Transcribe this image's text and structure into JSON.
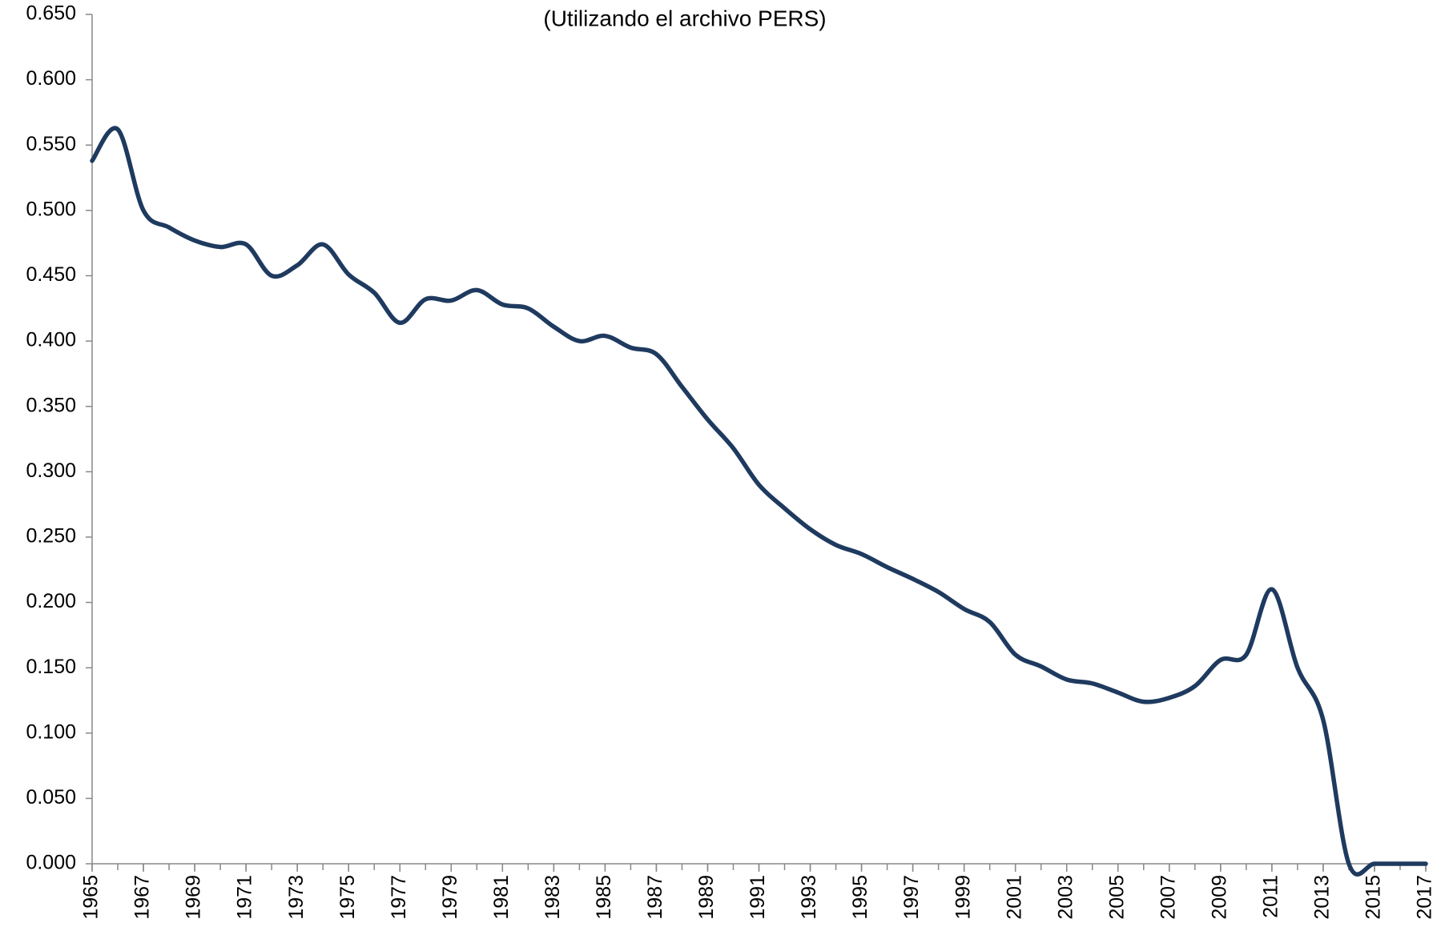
{
  "chart_data": {
    "type": "line",
    "title": "(Utilizando el archivo PERS)",
    "x": [
      1965,
      1966,
      1967,
      1968,
      1969,
      1970,
      1971,
      1972,
      1973,
      1974,
      1975,
      1976,
      1977,
      1978,
      1979,
      1980,
      1981,
      1982,
      1983,
      1984,
      1985,
      1986,
      1987,
      1988,
      1989,
      1990,
      1991,
      1992,
      1993,
      1994,
      1995,
      1996,
      1997,
      1998,
      1999,
      2000,
      2001,
      2002,
      2003,
      2004,
      2005,
      2006,
      2007,
      2008,
      2009,
      2010,
      2011,
      2012,
      2013,
      2014,
      2015,
      2016,
      2017
    ],
    "series": [
      {
        "name": null,
        "color": "#1f3a5f",
        "values": [
          0.538,
          0.562,
          0.5,
          0.487,
          0.477,
          0.472,
          0.474,
          0.45,
          0.458,
          0.474,
          0.451,
          0.437,
          0.414,
          0.432,
          0.431,
          0.439,
          0.428,
          0.425,
          0.411,
          0.4,
          0.404,
          0.395,
          0.39,
          0.365,
          0.34,
          0.318,
          0.29,
          0.272,
          0.256,
          0.244,
          0.237,
          0.227,
          0.218,
          0.208,
          0.195,
          0.185,
          0.16,
          0.151,
          0.141,
          0.138,
          0.131,
          0.124,
          0.127,
          0.136,
          0.156,
          0.16,
          0.21,
          0.15,
          0.11,
          0.0,
          0.0,
          0.0,
          0.0
        ]
      }
    ],
    "xlim": [
      1965,
      2017
    ],
    "xticks": [
      1965,
      1967,
      1969,
      1971,
      1973,
      1975,
      1977,
      1979,
      1981,
      1983,
      1985,
      1987,
      1989,
      1991,
      1993,
      1995,
      1997,
      1999,
      2001,
      2003,
      2005,
      2007,
      2009,
      2011,
      2013,
      2015,
      2017
    ],
    "ylim": [
      0,
      0.65
    ],
    "yticks": [
      {
        "value": 0,
        "label": "0.000"
      },
      {
        "value": 0.05,
        "label": "0.050"
      },
      {
        "value": 0.1,
        "label": "0.100"
      },
      {
        "value": 0.15,
        "label": "0.150"
      },
      {
        "value": 0.2,
        "label": "0.200"
      },
      {
        "value": 0.25,
        "label": "0.250"
      },
      {
        "value": 0.3,
        "label": "0.300"
      },
      {
        "value": 0.35,
        "label": "0.350"
      },
      {
        "value": 0.4,
        "label": "0.400"
      },
      {
        "value": 0.45,
        "label": "0.450"
      },
      {
        "value": 0.5,
        "label": "0.500"
      },
      {
        "value": 0.55,
        "label": "0.550"
      },
      {
        "value": 0.6,
        "label": "0.600"
      },
      {
        "value": 0.65,
        "label": "0.650"
      }
    ],
    "grid": false
  }
}
